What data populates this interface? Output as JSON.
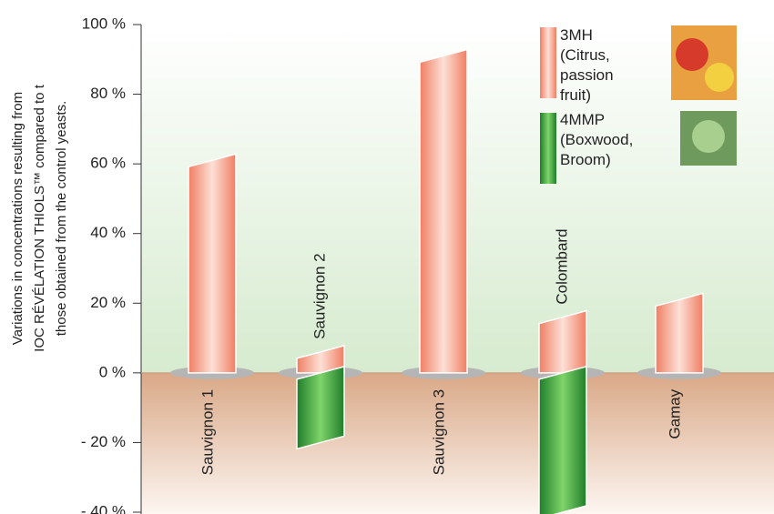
{
  "chart_data": {
    "type": "bar",
    "y_label": [
      "Variations in concentrations resulting from",
      "IOC RÉVÉLATION THIOLS™ compared to t",
      "those obtained from the control yeasts."
    ],
    "categories": [
      "Sauvignon 1",
      "Sauvignon 2",
      "Sauvignon 3",
      "Colombard",
      "Gamay"
    ],
    "series": [
      {
        "name": "3MH (Citrus, passion fruit)",
        "color": "#f07e62",
        "values": [
          61,
          6,
          91,
          16,
          21
        ]
      },
      {
        "name": "4MMP (Boxwood, Broom)",
        "color": "#23912f",
        "values": [
          null,
          -20,
          null,
          -40,
          null
        ]
      }
    ],
    "ylim": [
      -40,
      100
    ],
    "yticks": [
      {
        "value": 100,
        "label": "100 %"
      },
      {
        "value": 80,
        "label": "80 %"
      },
      {
        "value": 60,
        "label": "60 %"
      },
      {
        "value": 40,
        "label": "40 %"
      },
      {
        "value": 20,
        "label": "20 %"
      },
      {
        "value": 0,
        "label": "0 %"
      },
      {
        "value": -20,
        "label": "- 20 %"
      },
      {
        "value": -40,
        "label": "- 40 %"
      }
    ]
  }
}
